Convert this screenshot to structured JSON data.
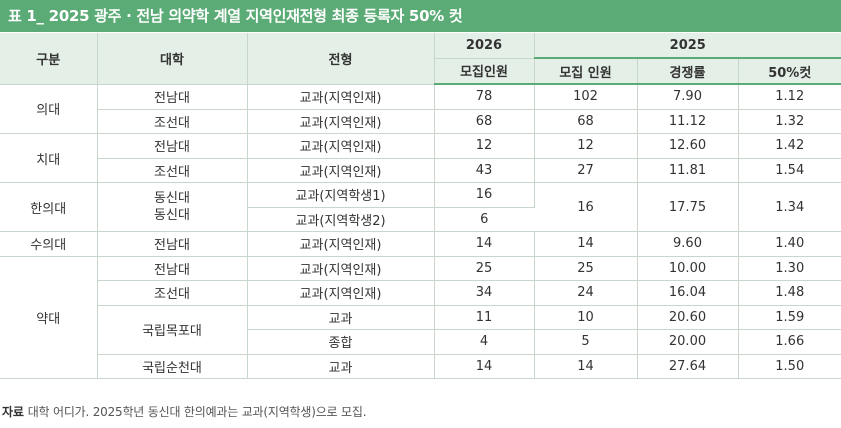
{
  "title": "표 1_ 2025 광주 · 전남 의약학 계열 지역인재전형 최종 등록자 50% 컷",
  "headers": {
    "category": "구분",
    "university": "대학",
    "track": "전형",
    "year2026": "2026",
    "year2025": "2025",
    "recruit2026": "모집인원",
    "recruit2025": "모집 인원",
    "competition": "경쟁률",
    "cut50": "50%컷"
  },
  "groups": {
    "medicine": "의대",
    "dentistry": "치대",
    "oriental": "한의대",
    "veterinary": "수의대",
    "pharmacy": "약대"
  },
  "rows": {
    "r1": {
      "univ": "전남대",
      "track": "교과(지역인재)",
      "recruit2026": "78",
      "recruit2025": "102",
      "competition": "7.90",
      "cut": "1.12"
    },
    "r2": {
      "univ": "조선대",
      "track": "교과(지역인재)",
      "recruit2026": "68",
      "recruit2025": "68",
      "competition": "11.12",
      "cut": "1.32"
    },
    "r3": {
      "univ": "전남대",
      "track": "교과(지역인재)",
      "recruit2026": "12",
      "recruit2025": "12",
      "competition": "12.60",
      "cut": "1.42"
    },
    "r4": {
      "univ": "조선대",
      "track": "교과(지역인재)",
      "recruit2026": "43",
      "recruit2025": "27",
      "competition": "11.81",
      "cut": "1.54"
    },
    "r5": {
      "univ_line1": "동신대",
      "univ_line2": "동신대",
      "track": "교과(지역학생1)",
      "recruit2026": "16",
      "recruit2025": "16",
      "competition": "17.75",
      "cut": "1.34"
    },
    "r6": {
      "track": "교과(지역학생2)",
      "recruit2026": "6"
    },
    "r7": {
      "univ": "전남대",
      "track": "교과(지역인재)",
      "recruit2026": "14",
      "recruit2025": "14",
      "competition": "9.60",
      "cut": "1.40"
    },
    "r8": {
      "univ": "전남대",
      "track": "교과(지역인재)",
      "recruit2026": "25",
      "recruit2025": "25",
      "competition": "10.00",
      "cut": "1.30"
    },
    "r9": {
      "univ": "조선대",
      "track": "교과(지역인재)",
      "recruit2026": "34",
      "recruit2025": "24",
      "competition": "16.04",
      "cut": "1.48"
    },
    "r10": {
      "univ": "국립목포대",
      "track": "교과",
      "recruit2026": "11",
      "recruit2025": "10",
      "competition": "20.60",
      "cut": "1.59"
    },
    "r11": {
      "track": "종합",
      "recruit2026": "4",
      "recruit2025": "5",
      "competition": "20.00",
      "cut": "1.66"
    },
    "r12": {
      "univ": "국립순천대",
      "track": "교과",
      "recruit2026": "14",
      "recruit2025": "14",
      "competition": "27.64",
      "cut": "1.50"
    }
  },
  "footnote": {
    "label": "자료",
    "text": "대학 어디가. 2025학년 동신대 한의예과는 교과(지역학생)으로 모집."
  }
}
